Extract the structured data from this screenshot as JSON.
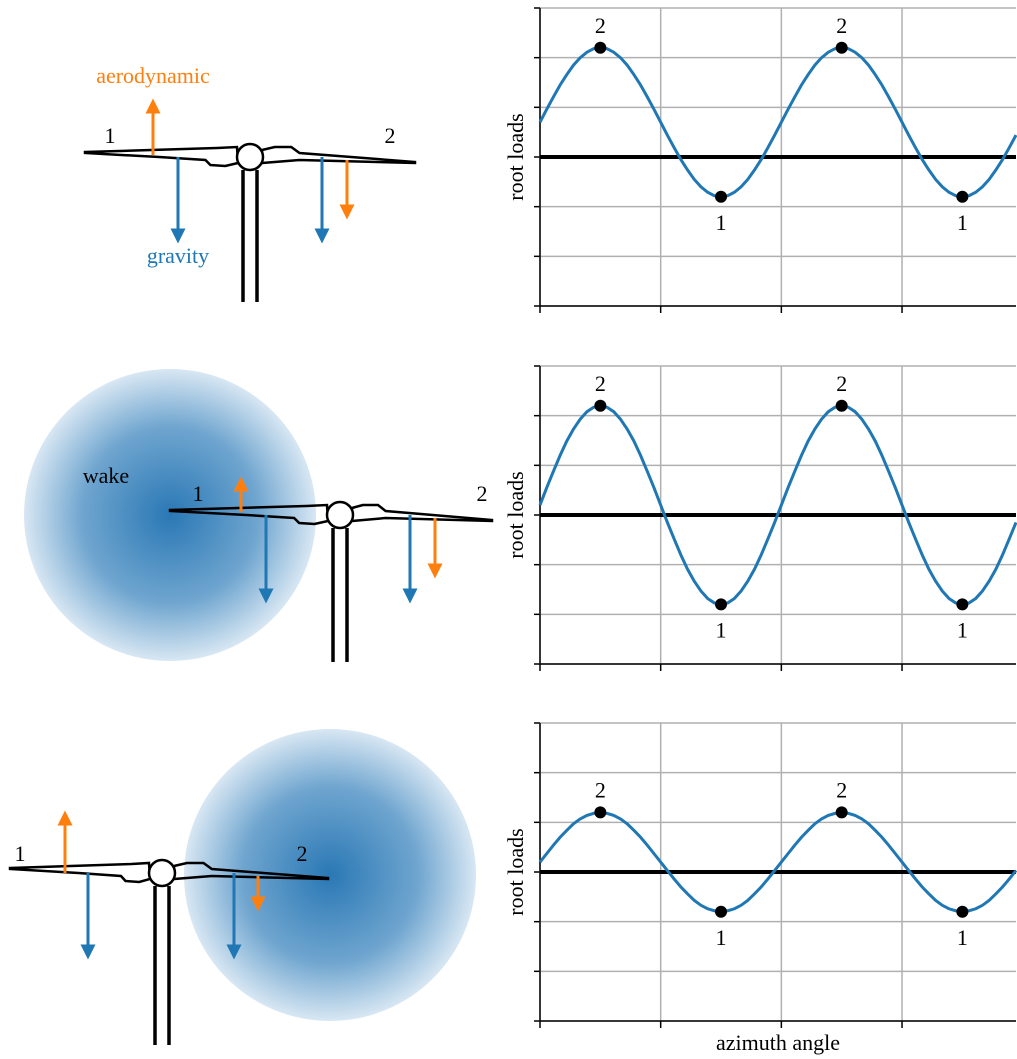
{
  "chart_data": [
    {
      "type": "line",
      "ylabel": "root loads",
      "x": [
        0,
        5,
        10,
        15,
        20,
        25,
        30,
        35,
        40,
        45,
        50,
        55,
        60,
        65,
        70,
        75,
        80,
        85,
        90,
        95,
        100,
        105,
        110,
        115,
        120,
        125,
        130,
        135,
        140,
        145,
        150,
        155,
        160,
        165,
        170,
        175,
        180,
        185,
        190,
        195,
        200,
        205,
        210,
        215,
        220,
        225,
        230,
        235,
        240,
        245,
        250,
        255,
        260,
        265,
        270,
        275,
        280,
        285,
        290,
        295,
        300,
        305,
        310,
        315,
        320,
        325,
        330,
        335,
        340,
        345,
        350,
        355
      ],
      "series": [
        {
          "color": "#1f77b4",
          "values": [
            0.7,
            0.96,
            1.21,
            1.45,
            1.66,
            1.85,
            2.0,
            2.11,
            2.18,
            2.2,
            2.18,
            2.11,
            2.0,
            1.85,
            1.66,
            1.45,
            1.21,
            0.96,
            0.7,
            0.44,
            0.19,
            -0.05,
            -0.26,
            -0.45,
            -0.6,
            -0.71,
            -0.78,
            -0.8,
            -0.78,
            -0.71,
            -0.6,
            -0.45,
            -0.26,
            -0.05,
            0.19,
            0.44,
            0.7,
            0.96,
            1.21,
            1.45,
            1.66,
            1.85,
            2.0,
            2.11,
            2.18,
            2.2,
            2.18,
            2.11,
            2.0,
            1.85,
            1.66,
            1.45,
            1.21,
            0.96,
            0.7,
            0.44,
            0.19,
            -0.05,
            -0.26,
            -0.45,
            -0.6,
            -0.71,
            -0.78,
            -0.8,
            -0.78,
            -0.71,
            -0.6,
            -0.45,
            -0.26,
            -0.05,
            0.19,
            0.44
          ]
        }
      ],
      "markers": {
        "x": [
          45,
          135,
          225,
          315
        ],
        "values": [
          2.2,
          -0.8,
          2.2,
          -0.8
        ],
        "labels": [
          "2",
          "1",
          "2",
          "1"
        ]
      },
      "reference_line": 0,
      "xlim": [
        0,
        355
      ],
      "xticks": [
        0,
        90,
        180,
        270
      ],
      "ylim": [
        -3,
        3
      ],
      "yticks": [
        -3,
        -2,
        -1,
        0,
        1,
        2,
        3
      ],
      "grid": true
    },
    {
      "type": "line",
      "ylabel": "root loads",
      "x": [
        0,
        5,
        10,
        15,
        20,
        25,
        30,
        35,
        40,
        45,
        50,
        55,
        60,
        65,
        70,
        75,
        80,
        85,
        90,
        95,
        100,
        105,
        110,
        115,
        120,
        125,
        130,
        135,
        140,
        145,
        150,
        155,
        160,
        165,
        170,
        175,
        180,
        185,
        190,
        195,
        200,
        205,
        210,
        215,
        220,
        225,
        230,
        235,
        240,
        245,
        250,
        255,
        260,
        265,
        270,
        275,
        280,
        285,
        290,
        295,
        300,
        305,
        310,
        315,
        320,
        325,
        330,
        335,
        340,
        345,
        350,
        355
      ],
      "series": [
        {
          "color": "#1f77b4",
          "values": [
            0.2,
            0.55,
            0.88,
            1.2,
            1.49,
            1.73,
            1.93,
            2.08,
            2.17,
            2.2,
            2.17,
            2.08,
            1.93,
            1.73,
            1.49,
            1.2,
            0.88,
            0.55,
            0.2,
            -0.15,
            -0.48,
            -0.8,
            -1.09,
            -1.33,
            -1.53,
            -1.68,
            -1.77,
            -1.8,
            -1.77,
            -1.68,
            -1.53,
            -1.33,
            -1.09,
            -0.8,
            -0.48,
            -0.15,
            0.2,
            0.55,
            0.88,
            1.2,
            1.49,
            1.73,
            1.93,
            2.08,
            2.17,
            2.2,
            2.17,
            2.08,
            1.93,
            1.73,
            1.49,
            1.2,
            0.88,
            0.55,
            0.2,
            -0.15,
            -0.48,
            -0.8,
            -1.09,
            -1.33,
            -1.53,
            -1.68,
            -1.77,
            -1.8,
            -1.77,
            -1.68,
            -1.53,
            -1.33,
            -1.09,
            -0.8,
            -0.48,
            -0.15
          ]
        }
      ],
      "markers": {
        "x": [
          45,
          135,
          225,
          315
        ],
        "values": [
          2.2,
          -1.8,
          2.2,
          -1.8
        ],
        "labels": [
          "2",
          "1",
          "2",
          "1"
        ]
      },
      "reference_line": 0,
      "xlim": [
        0,
        355
      ],
      "xticks": [
        0,
        90,
        180,
        270
      ],
      "ylim": [
        -3,
        3
      ],
      "yticks": [
        -3,
        -2,
        -1,
        0,
        1,
        2,
        3
      ],
      "grid": true
    },
    {
      "type": "line",
      "ylabel": "root loads",
      "xlabel": "azimuth angle",
      "x": [
        0,
        5,
        10,
        15,
        20,
        25,
        30,
        35,
        40,
        45,
        50,
        55,
        60,
        65,
        70,
        75,
        80,
        85,
        90,
        95,
        100,
        105,
        110,
        115,
        120,
        125,
        130,
        135,
        140,
        145,
        150,
        155,
        160,
        165,
        170,
        175,
        180,
        185,
        190,
        195,
        200,
        205,
        210,
        215,
        220,
        225,
        230,
        235,
        240,
        245,
        250,
        255,
        260,
        265,
        270,
        275,
        280,
        285,
        290,
        295,
        300,
        305,
        310,
        315,
        320,
        325,
        330,
        335,
        340,
        345,
        350,
        355
      ],
      "series": [
        {
          "color": "#1f77b4",
          "values": [
            0.2,
            0.37,
            0.54,
            0.7,
            0.84,
            0.97,
            1.07,
            1.14,
            1.18,
            1.2,
            1.18,
            1.14,
            1.07,
            0.97,
            0.84,
            0.7,
            0.54,
            0.37,
            0.2,
            0.03,
            -0.14,
            -0.3,
            -0.44,
            -0.57,
            -0.67,
            -0.74,
            -0.78,
            -0.8,
            -0.78,
            -0.74,
            -0.67,
            -0.57,
            -0.44,
            -0.3,
            -0.14,
            0.03,
            0.2,
            0.37,
            0.54,
            0.7,
            0.84,
            0.97,
            1.07,
            1.14,
            1.18,
            1.2,
            1.18,
            1.14,
            1.07,
            0.97,
            0.84,
            0.7,
            0.54,
            0.37,
            0.2,
            0.03,
            -0.14,
            -0.3,
            -0.44,
            -0.57,
            -0.67,
            -0.74,
            -0.78,
            -0.8,
            -0.78,
            -0.74,
            -0.67,
            -0.57,
            -0.44,
            -0.3,
            -0.14,
            0.03
          ]
        }
      ],
      "markers": {
        "x": [
          45,
          135,
          225,
          315
        ],
        "values": [
          1.2,
          -0.8,
          1.2,
          -0.8
        ],
        "labels": [
          "2",
          "1",
          "2",
          "1"
        ]
      },
      "reference_line": 0,
      "xlim": [
        0,
        355
      ],
      "xticks": [
        0,
        90,
        180,
        270
      ],
      "ylim": [
        -3,
        3
      ],
      "yticks": [
        -3,
        -2,
        -1,
        0,
        1,
        2,
        3
      ],
      "grid": true
    }
  ],
  "diagrams": [
    {
      "blade_labels": [
        "1",
        "2"
      ],
      "aerodynamic_label": "aerodynamic",
      "gravity_label": "gravity"
    },
    {
      "blade_labels": [
        "1",
        "2"
      ],
      "wake_label": "wake"
    },
    {
      "blade_labels": [
        "1",
        "2"
      ]
    }
  ]
}
